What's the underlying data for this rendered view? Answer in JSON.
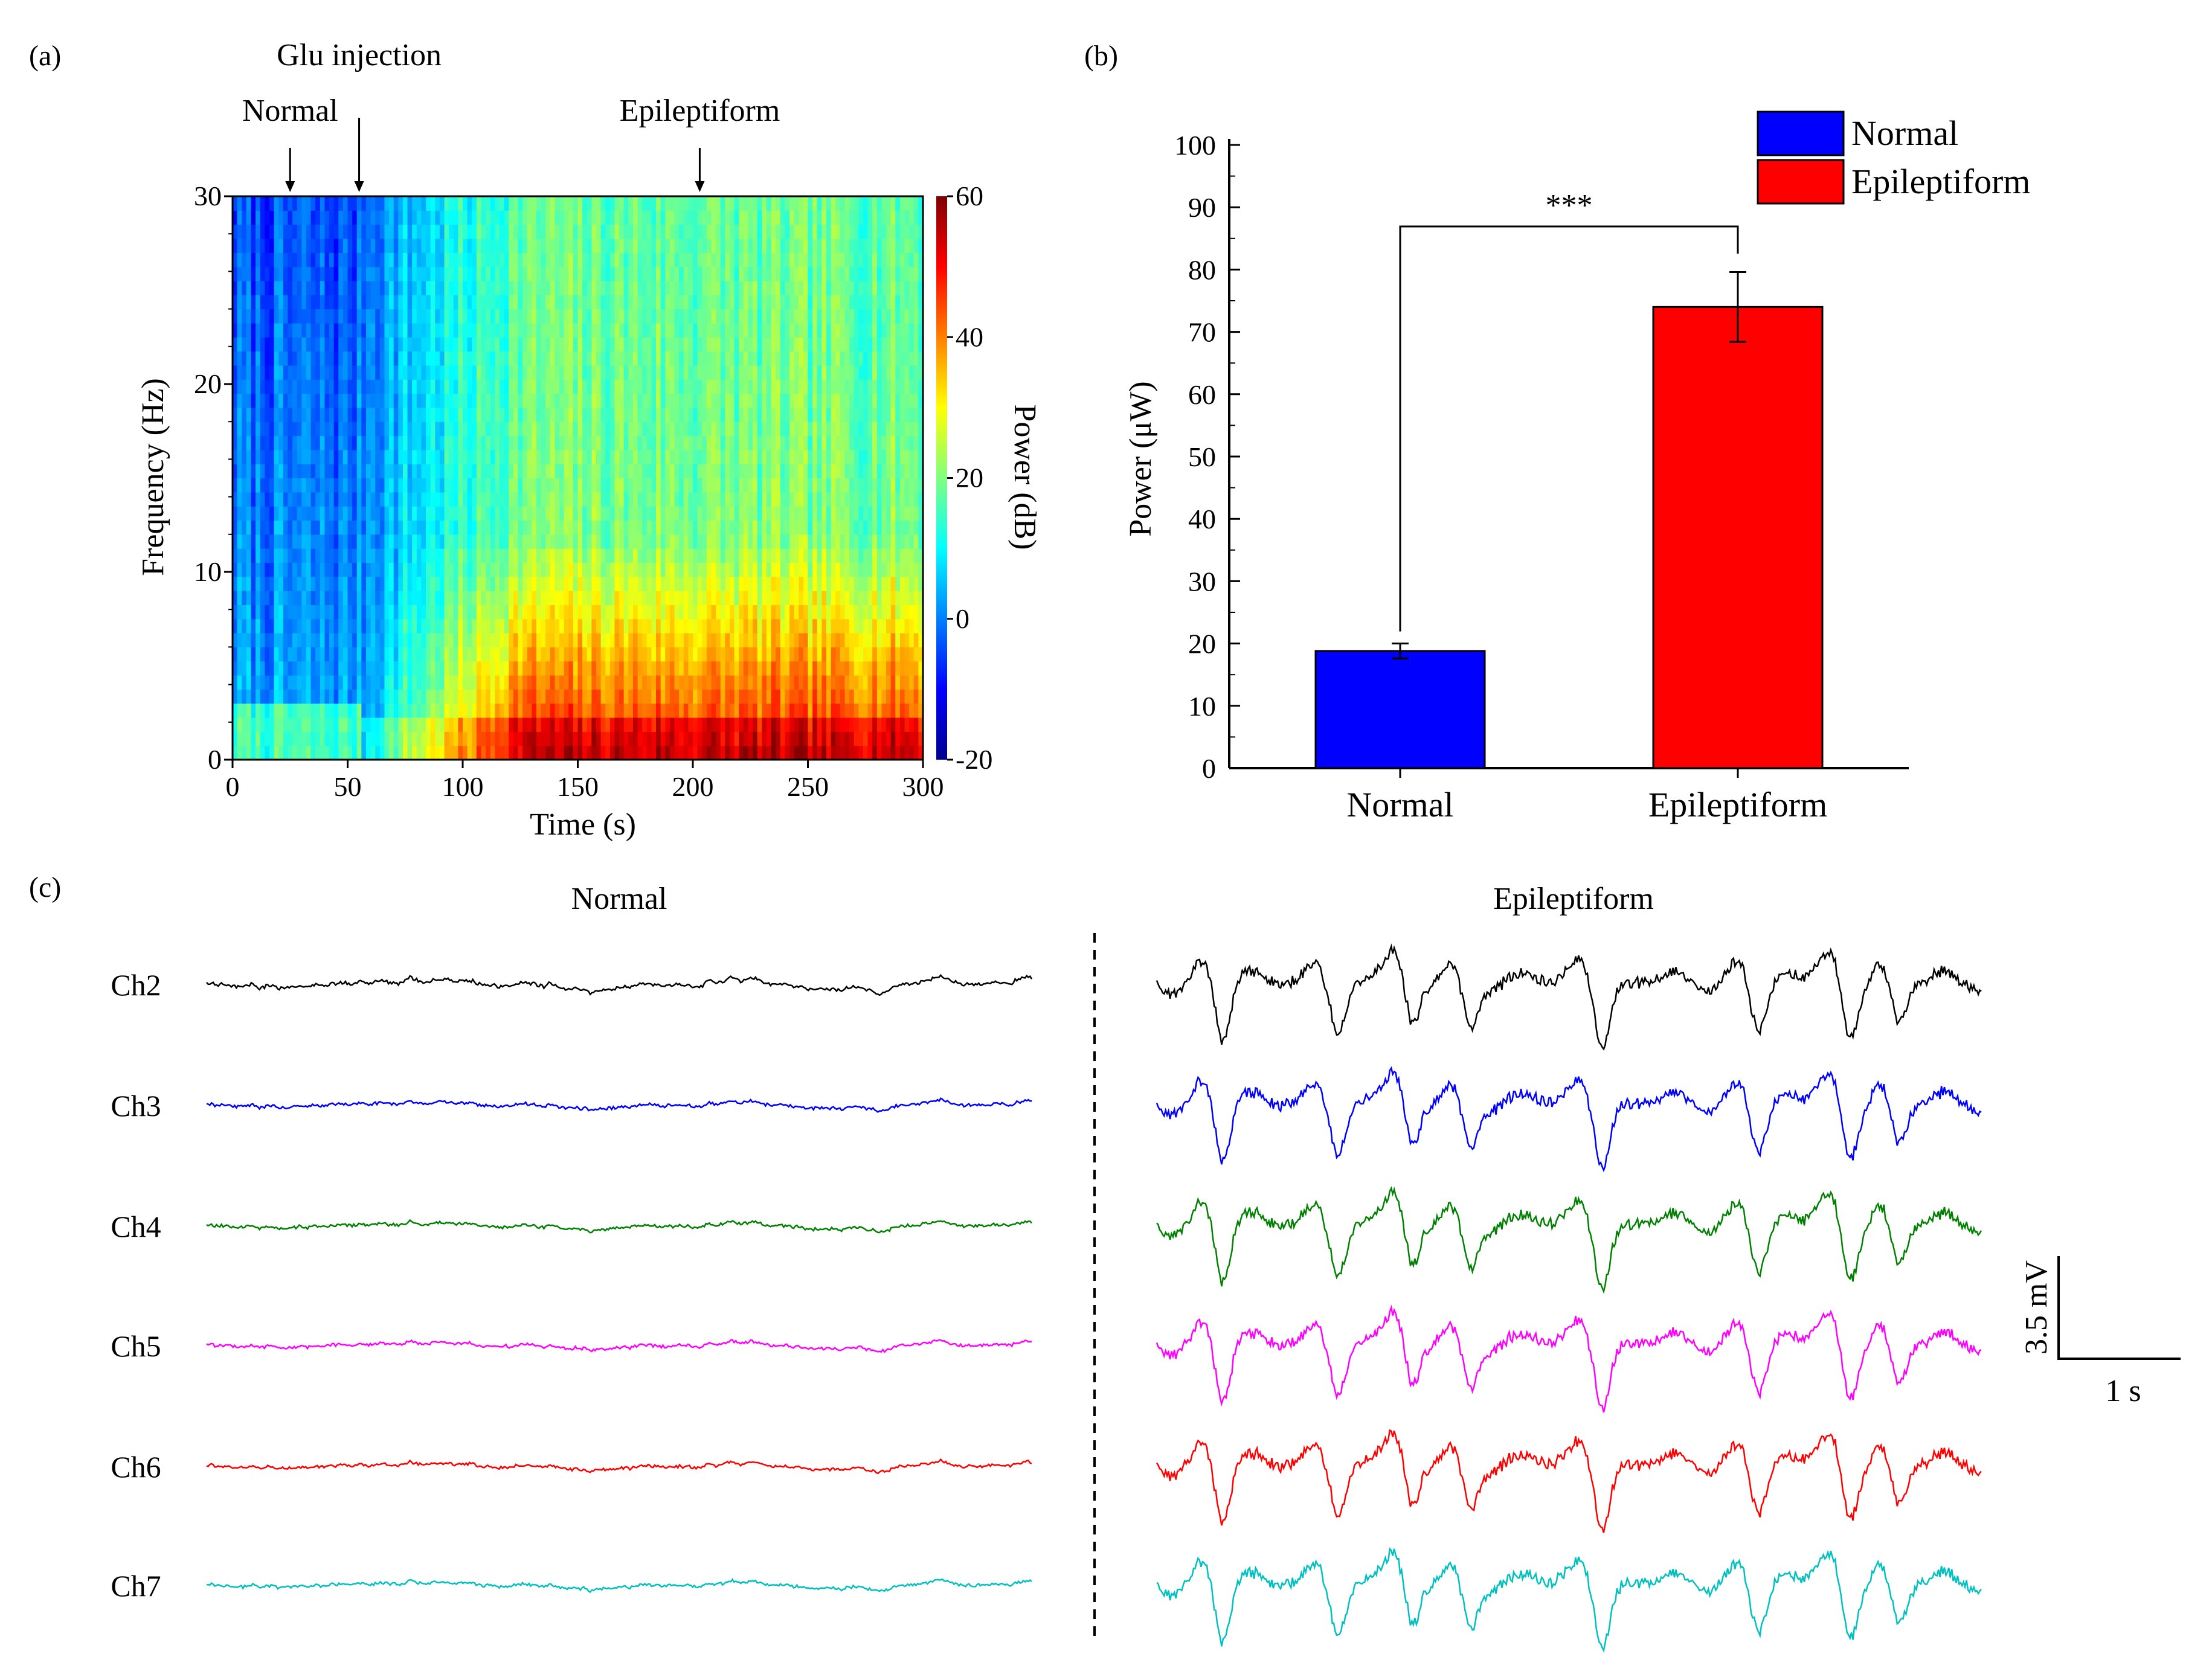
{
  "panels": {
    "a": "(a)",
    "b": "(b)",
    "c": "(c)"
  },
  "chart_data": [
    {
      "type": "heatmap",
      "panel": "(a)",
      "xlabel": "Time (s)",
      "ylabel": "Frequency (Hz)",
      "xlim": [
        0,
        300
      ],
      "ylim": [
        0,
        30
      ],
      "xticks": [
        "0",
        "50",
        "100",
        "150",
        "200",
        "250",
        "300"
      ],
      "yticks": [
        "0",
        "10",
        "20",
        "30"
      ],
      "colorbar": {
        "label": "Power (dB)",
        "range": [
          -20,
          60
        ],
        "ticks": [
          "-20",
          "0",
          "20",
          "40",
          "60"
        ],
        "colormap": "jet"
      },
      "annotations": [
        {
          "text": "Glu injection",
          "x": 55
        },
        {
          "text": "Normal",
          "x": 25
        },
        {
          "text": "Epileptiform",
          "x": 203
        }
      ]
    },
    {
      "type": "bar",
      "panel": "(b)",
      "categories": [
        "Normal",
        "Epileptiform"
      ],
      "values": [
        18.8,
        74.0
      ],
      "errors": [
        1.2,
        5.6
      ],
      "colors": [
        "#0000ff",
        "#ff0000"
      ],
      "ylabel": "Power (μW)",
      "ylim": [
        0,
        100
      ],
      "yticks": [
        "0",
        "10",
        "20",
        "30",
        "40",
        "50",
        "60",
        "70",
        "80",
        "90",
        "100"
      ],
      "significance": "***",
      "legend": [
        {
          "label": "Normal",
          "color": "#0000ff"
        },
        {
          "label": "Epileptiform",
          "color": "#ff0000"
        }
      ],
      "legend_position": "top-right"
    },
    {
      "type": "line",
      "panel": "(c)",
      "conditions": [
        "Normal",
        "Epileptiform"
      ],
      "channels": [
        {
          "name": "Ch2",
          "color": "#000000"
        },
        {
          "name": "Ch3",
          "color": "#0000ff"
        },
        {
          "name": "Ch4",
          "color": "#008000"
        },
        {
          "name": "Ch5",
          "color": "#ff00ff"
        },
        {
          "name": "Ch6",
          "color": "#ff0000"
        },
        {
          "name": "Ch7",
          "color": "#00c0c0"
        }
      ],
      "scale_bar": {
        "vertical": "3.5 mV",
        "horizontal": "1 s"
      }
    }
  ]
}
